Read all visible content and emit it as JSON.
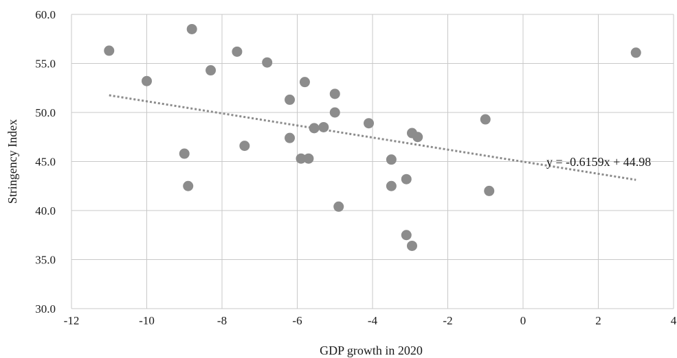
{
  "chart_data": {
    "type": "scatter",
    "title": "",
    "xlabel": "GDP growth in 2020",
    "ylabel": "Stringency Index",
    "xlim": [
      -12,
      4
    ],
    "ylim": [
      30,
      60
    ],
    "x_ticks": [
      -12,
      -10,
      -8,
      -6,
      -4,
      -2,
      0,
      2,
      4
    ],
    "y_ticks": [
      30.0,
      35.0,
      40.0,
      45.0,
      50.0,
      55.0,
      60.0
    ],
    "x_tick_labels": [
      "-12",
      "-10",
      "-8",
      "-6",
      "-4",
      "-2",
      "0",
      "2",
      "4"
    ],
    "y_tick_labels": [
      "30.0",
      "35.0",
      "40.0",
      "45.0",
      "50.0",
      "55.0",
      "60.0"
    ],
    "grid": true,
    "colors": {
      "points": "#8c8c8c",
      "trendline": "#8c8c8c",
      "grid": "#c8c8c8"
    },
    "points": [
      {
        "x": -11.0,
        "y": 56.3
      },
      {
        "x": -10.0,
        "y": 53.2
      },
      {
        "x": -9.0,
        "y": 45.8
      },
      {
        "x": -8.9,
        "y": 42.5
      },
      {
        "x": -8.8,
        "y": 58.5
      },
      {
        "x": -8.3,
        "y": 54.3
      },
      {
        "x": -7.6,
        "y": 56.2
      },
      {
        "x": -7.4,
        "y": 46.6
      },
      {
        "x": -6.8,
        "y": 55.1
      },
      {
        "x": -6.2,
        "y": 51.3
      },
      {
        "x": -6.2,
        "y": 47.4
      },
      {
        "x": -5.9,
        "y": 45.3
      },
      {
        "x": -5.8,
        "y": 53.1
      },
      {
        "x": -5.7,
        "y": 45.3
      },
      {
        "x": -5.55,
        "y": 48.4
      },
      {
        "x": -5.3,
        "y": 48.5
      },
      {
        "x": -5.0,
        "y": 51.9
      },
      {
        "x": -5.0,
        "y": 50.0
      },
      {
        "x": -4.9,
        "y": 40.4
      },
      {
        "x": -4.1,
        "y": 48.9
      },
      {
        "x": -3.5,
        "y": 45.2
      },
      {
        "x": -3.5,
        "y": 42.5
      },
      {
        "x": -3.1,
        "y": 43.2
      },
      {
        "x": -3.1,
        "y": 37.5
      },
      {
        "x": -2.95,
        "y": 47.9
      },
      {
        "x": -2.95,
        "y": 36.4
      },
      {
        "x": -2.8,
        "y": 47.5
      },
      {
        "x": -1.0,
        "y": 49.3
      },
      {
        "x": -0.9,
        "y": 42.0
      },
      {
        "x": 3.0,
        "y": 56.1
      }
    ],
    "trendline": {
      "slope": -0.6159,
      "intercept": 44.98,
      "x_range": [
        -11,
        3
      ],
      "label": "y = -0.6159x + 44.98"
    }
  }
}
